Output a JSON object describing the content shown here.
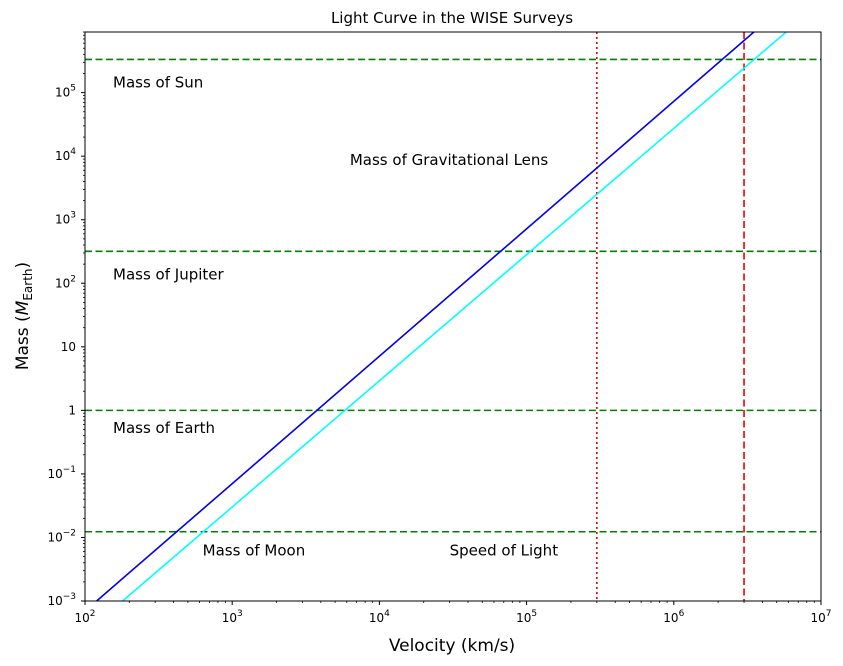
{
  "chart_data": {
    "type": "line",
    "title": "Light Curve in the WISE Surveys",
    "xlabel": "Velocity (km/s)",
    "ylabel_main": "Mass (",
    "ylabel_symbol": "M",
    "ylabel_sub": "Earth",
    "ylabel_close": ")",
    "xscale": "log",
    "yscale": "log",
    "xlim": [
      100,
      10000000
    ],
    "ylim": [
      0.001,
      900000
    ],
    "grid": false,
    "x_ticks": [
      {
        "value": 100,
        "base": "10",
        "exp": "2"
      },
      {
        "value": 1000,
        "base": "10",
        "exp": "3"
      },
      {
        "value": 10000,
        "base": "10",
        "exp": "4"
      },
      {
        "value": 100000,
        "base": "10",
        "exp": "5"
      },
      {
        "value": 1000000,
        "base": "10",
        "exp": "6"
      },
      {
        "value": 10000000,
        "base": "10",
        "exp": "7"
      }
    ],
    "y_ticks": [
      {
        "value": 0.001,
        "base": "10",
        "exp": "−3"
      },
      {
        "value": 0.01,
        "base": "10",
        "exp": "−2"
      },
      {
        "value": 0.1,
        "base": "10",
        "exp": "−1"
      },
      {
        "value": 1,
        "base": "1",
        "exp": ""
      },
      {
        "value": 10,
        "base": "10",
        "exp": ""
      },
      {
        "value": 100,
        "base": "10",
        "exp": "2"
      },
      {
        "value": 1000,
        "base": "10",
        "exp": "3"
      },
      {
        "value": 10000,
        "base": "10",
        "exp": "4"
      },
      {
        "value": 100000,
        "base": "10",
        "exp": "5"
      }
    ],
    "series": [
      {
        "color": "#0000ee",
        "x": [
          120,
          3500000
        ],
        "y": [
          0.001,
          900000
        ]
      },
      {
        "color": "#00ffff",
        "x": [
          180,
          5800000
        ],
        "y": [
          0.001,
          900000
        ]
      }
    ],
    "hlines": [
      {
        "y": 333000,
        "color": "#008000",
        "style": "dashed"
      },
      {
        "y": 318,
        "color": "#008000",
        "style": "dashed"
      },
      {
        "y": 1,
        "color": "#008000",
        "style": "dashed"
      },
      {
        "y": 0.0123,
        "color": "#008000",
        "style": "dashed"
      }
    ],
    "vlines": [
      {
        "x": 300000,
        "color": "#ee0000",
        "style": "dotted"
      },
      {
        "x": 3000000,
        "color": "#ee0000",
        "style": "dashed"
      }
    ],
    "annotations": [
      {
        "text": "Mass of Sun",
        "x": 155,
        "y": 120000,
        "anchor": "start"
      },
      {
        "text": "Mass of Gravitational Lens",
        "x": 6300,
        "y": 7200,
        "anchor": "start"
      },
      {
        "text": "Mass of Jupiter",
        "x": 155,
        "y": 115,
        "anchor": "start"
      },
      {
        "text": "Mass of Earth",
        "x": 155,
        "y": 0.44,
        "anchor": "start"
      },
      {
        "text": "Mass of Moon",
        "x": 630,
        "y": 0.0052,
        "anchor": "start"
      },
      {
        "text": "Speed of Light",
        "x": 30000,
        "y": 0.0052,
        "anchor": "start"
      }
    ]
  }
}
